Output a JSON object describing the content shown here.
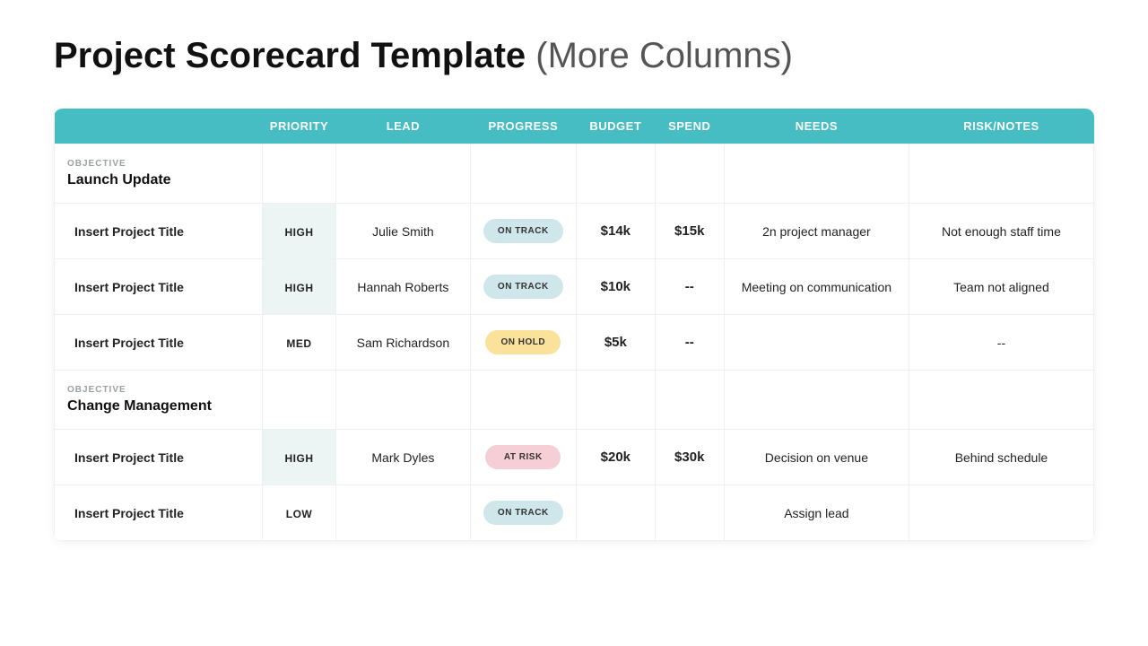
{
  "title_main": "Project Scorecard Template",
  "title_sub": "(More Columns)",
  "colors": {
    "header_bg": "#46bcc3",
    "priority_high_bg": "#ecf4f4",
    "pill_on_track": "#cfe7ea",
    "pill_on_hold": "#fbe29b",
    "pill_at_risk": "#f6cfd6"
  },
  "column_widths": [
    "225px",
    "80px",
    "145px",
    "115px",
    "85px",
    "75px",
    "200px",
    "200px"
  ],
  "columns": [
    "",
    "PRIORITY",
    "LEAD",
    "PROGRESS",
    "BUDGET",
    "SPEND",
    "NEEDS",
    "RISK/NOTES"
  ],
  "objective_label": "OBJECTIVE",
  "sections": [
    {
      "objective": "Launch Update",
      "rows": [
        {
          "title": "Insert Project Title",
          "priority": "HIGH",
          "lead": "Julie Smith",
          "progress": "ON TRACK",
          "progress_key": "on_track",
          "budget": "$14k",
          "spend": "$15k",
          "needs": "2n project manager",
          "risk": "Not enough staff time"
        },
        {
          "title": "Insert Project Title",
          "priority": "HIGH",
          "lead": "Hannah Roberts",
          "progress": "ON TRACK",
          "progress_key": "on_track",
          "budget": "$10k",
          "spend": "--",
          "needs": "Meeting on communication",
          "risk": "Team not aligned"
        },
        {
          "title": "Insert Project Title",
          "priority": "MED",
          "lead": "Sam Richardson",
          "progress": "ON HOLD",
          "progress_key": "on_hold",
          "budget": "$5k",
          "spend": "--",
          "needs": "",
          "risk": "--"
        }
      ]
    },
    {
      "objective": "Change Management",
      "rows": [
        {
          "title": "Insert Project Title",
          "priority": "HIGH",
          "lead": "Mark Dyles",
          "progress": "AT RISK",
          "progress_key": "at_risk",
          "budget": "$20k",
          "spend": "$30k",
          "needs": "Decision on venue",
          "risk": "Behind schedule"
        },
        {
          "title": "Insert Project Title",
          "priority": "LOW",
          "lead": "",
          "progress": "ON TRACK",
          "progress_key": "on_track",
          "budget": "",
          "spend": "",
          "needs": "Assign lead",
          "risk": ""
        }
      ]
    }
  ]
}
